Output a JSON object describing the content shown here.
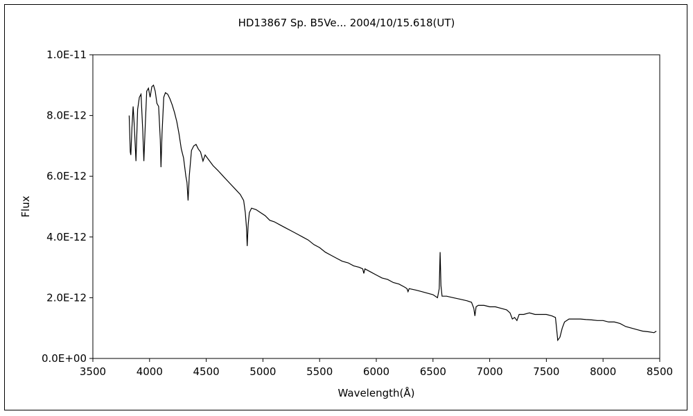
{
  "chart_data": {
    "type": "line",
    "title": "HD13867  Sp. B5Ve...  2004/10/15.618(UT)",
    "xlabel": "Wavelength(Å)",
    "ylabel": "Flux",
    "xlim": [
      3500,
      8500
    ],
    "ylim": [
      0,
      1e-11
    ],
    "x_ticks": [
      3500,
      4000,
      4500,
      5000,
      5500,
      6000,
      6500,
      7000,
      7500,
      8000,
      8500
    ],
    "x_tick_labels": [
      "3500",
      "4000",
      "4500",
      "5000",
      "5500",
      "6000",
      "6500",
      "7000",
      "7500",
      "8000",
      "8500"
    ],
    "y_ticks": [
      0,
      2e-12,
      4e-12,
      6e-12,
      8e-12,
      1e-11
    ],
    "y_tick_labels": [
      "0.0E+00",
      "2.0E-12",
      "4.0E-12",
      "6.0E-12",
      "8.0E-12",
      "1.0E-11"
    ],
    "grid": false,
    "series": [
      {
        "points": [
          [
            3820,
            8e-12
          ],
          [
            3830,
            6.8e-12
          ],
          [
            3835,
            6.7e-12
          ],
          [
            3845,
            7.6e-12
          ],
          [
            3855,
            8.3e-12
          ],
          [
            3865,
            7.7e-12
          ],
          [
            3880,
            6.5e-12
          ],
          [
            3895,
            8.2e-12
          ],
          [
            3910,
            8.6e-12
          ],
          [
            3925,
            8.7e-12
          ],
          [
            3940,
            7.5e-12
          ],
          [
            3950,
            6.5e-12
          ],
          [
            3960,
            7.5e-12
          ],
          [
            3975,
            8.8e-12
          ],
          [
            3990,
            8.9e-12
          ],
          [
            4005,
            8.6e-12
          ],
          [
            4020,
            8.95e-12
          ],
          [
            4035,
            9e-12
          ],
          [
            4050,
            8.8e-12
          ],
          [
            4065,
            8.4e-12
          ],
          [
            4080,
            8.3e-12
          ],
          [
            4095,
            7.2e-12
          ],
          [
            4101,
            6.3e-12
          ],
          [
            4110,
            7.4e-12
          ],
          [
            4125,
            8.6e-12
          ],
          [
            4140,
            8.75e-12
          ],
          [
            4160,
            8.7e-12
          ],
          [
            4180,
            8.55e-12
          ],
          [
            4200,
            8.35e-12
          ],
          [
            4220,
            8.1e-12
          ],
          [
            4240,
            7.8e-12
          ],
          [
            4260,
            7.4e-12
          ],
          [
            4280,
            6.9e-12
          ],
          [
            4300,
            6.6e-12
          ],
          [
            4320,
            6e-12
          ],
          [
            4330,
            5.8e-12
          ],
          [
            4340,
            5.2e-12
          ],
          [
            4350,
            6e-12
          ],
          [
            4370,
            6.85e-12
          ],
          [
            4390,
            7e-12
          ],
          [
            4410,
            7.05e-12
          ],
          [
            4430,
            6.9e-12
          ],
          [
            4450,
            6.8e-12
          ],
          [
            4471,
            6.5e-12
          ],
          [
            4490,
            6.7e-12
          ],
          [
            4520,
            6.55e-12
          ],
          [
            4560,
            6.35e-12
          ],
          [
            4600,
            6.2e-12
          ],
          [
            4650,
            6e-12
          ],
          [
            4700,
            5.8e-12
          ],
          [
            4750,
            5.6e-12
          ],
          [
            4800,
            5.4e-12
          ],
          [
            4830,
            5.2e-12
          ],
          [
            4845,
            4.8e-12
          ],
          [
            4855,
            4.3e-12
          ],
          [
            4861,
            3.7e-12
          ],
          [
            4870,
            4.4e-12
          ],
          [
            4880,
            4.8e-12
          ],
          [
            4900,
            4.95e-12
          ],
          [
            4940,
            4.9e-12
          ],
          [
            4980,
            4.8e-12
          ],
          [
            5020,
            4.7e-12
          ],
          [
            5060,
            4.55e-12
          ],
          [
            5100,
            4.5e-12
          ],
          [
            5150,
            4.4e-12
          ],
          [
            5200,
            4.3e-12
          ],
          [
            5250,
            4.2e-12
          ],
          [
            5300,
            4.1e-12
          ],
          [
            5350,
            4e-12
          ],
          [
            5400,
            3.9e-12
          ],
          [
            5450,
            3.75e-12
          ],
          [
            5500,
            3.65e-12
          ],
          [
            5550,
            3.5e-12
          ],
          [
            5600,
            3.4e-12
          ],
          [
            5650,
            3.3e-12
          ],
          [
            5700,
            3.2e-12
          ],
          [
            5750,
            3.15e-12
          ],
          [
            5800,
            3.05e-12
          ],
          [
            5850,
            3e-12
          ],
          [
            5880,
            2.95e-12
          ],
          [
            5890,
            2.8e-12
          ],
          [
            5900,
            2.95e-12
          ],
          [
            5950,
            2.85e-12
          ],
          [
            6000,
            2.75e-12
          ],
          [
            6050,
            2.65e-12
          ],
          [
            6100,
            2.6e-12
          ],
          [
            6150,
            2.5e-12
          ],
          [
            6200,
            2.45e-12
          ],
          [
            6250,
            2.35e-12
          ],
          [
            6270,
            2.3e-12
          ],
          [
            6280,
            2.2e-12
          ],
          [
            6290,
            2.3e-12
          ],
          [
            6350,
            2.25e-12
          ],
          [
            6400,
            2.2e-12
          ],
          [
            6450,
            2.15e-12
          ],
          [
            6500,
            2.1e-12
          ],
          [
            6540,
            2e-12
          ],
          [
            6555,
            2.3e-12
          ],
          [
            6563,
            3.5e-12
          ],
          [
            6570,
            2.4e-12
          ],
          [
            6580,
            2.05e-12
          ],
          [
            6620,
            2.05e-12
          ],
          [
            6680,
            2e-12
          ],
          [
            6740,
            1.95e-12
          ],
          [
            6800,
            1.9e-12
          ],
          [
            6840,
            1.85e-12
          ],
          [
            6860,
            1.65e-12
          ],
          [
            6870,
            1.4e-12
          ],
          [
            6880,
            1.7e-12
          ],
          [
            6900,
            1.75e-12
          ],
          [
            6950,
            1.75e-12
          ],
          [
            7000,
            1.7e-12
          ],
          [
            7050,
            1.7e-12
          ],
          [
            7100,
            1.65e-12
          ],
          [
            7150,
            1.6e-12
          ],
          [
            7180,
            1.5e-12
          ],
          [
            7200,
            1.3e-12
          ],
          [
            7220,
            1.35e-12
          ],
          [
            7240,
            1.25e-12
          ],
          [
            7260,
            1.45e-12
          ],
          [
            7300,
            1.45e-12
          ],
          [
            7350,
            1.5e-12
          ],
          [
            7400,
            1.45e-12
          ],
          [
            7450,
            1.45e-12
          ],
          [
            7500,
            1.45e-12
          ],
          [
            7550,
            1.4e-12
          ],
          [
            7580,
            1.35e-12
          ],
          [
            7590,
            1e-12
          ],
          [
            7600,
            6e-13
          ],
          [
            7620,
            7e-13
          ],
          [
            7640,
            1e-12
          ],
          [
            7660,
            1.2e-12
          ],
          [
            7700,
            1.3e-12
          ],
          [
            7750,
            1.3e-12
          ],
          [
            7800,
            1.3e-12
          ],
          [
            7850,
            1.28e-12
          ],
          [
            7900,
            1.27e-12
          ],
          [
            7950,
            1.25e-12
          ],
          [
            8000,
            1.25e-12
          ],
          [
            8050,
            1.2e-12
          ],
          [
            8100,
            1.2e-12
          ],
          [
            8150,
            1.15e-12
          ],
          [
            8200,
            1.05e-12
          ],
          [
            8250,
            1e-12
          ],
          [
            8300,
            9.5e-13
          ],
          [
            8350,
            9e-13
          ],
          [
            8400,
            8.8e-13
          ],
          [
            8450,
            8.5e-13
          ],
          [
            8470,
            9e-13
          ]
        ]
      }
    ]
  }
}
